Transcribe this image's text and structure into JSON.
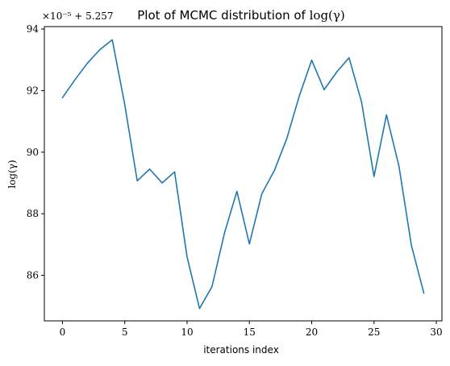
{
  "chart_data": {
    "type": "line",
    "title_prefix": "Plot of MCMC distribution of ",
    "title_math": "log(γ)",
    "xlabel": "iterations index",
    "ylabel": "log(γ)",
    "offset_text": "×10⁻⁵ + 5.257",
    "x_ticks": [
      0,
      5,
      10,
      15,
      20,
      25,
      30
    ],
    "x_tick_labels": [
      "0",
      "5",
      "10",
      "15",
      "20",
      "25",
      "30"
    ],
    "y_ticks": [
      86,
      88,
      90,
      92,
      94
    ],
    "y_tick_labels": [
      "86",
      "88",
      "90",
      "92",
      "94"
    ],
    "xlim": [
      -1.45,
      30.45
    ],
    "ylim": [
      84.52,
      94.08
    ],
    "grid": false,
    "line_color": "#1f77b4",
    "series": [
      {
        "x": [
          0,
          1,
          2,
          3,
          4,
          5,
          6,
          7,
          8,
          9,
          10,
          11,
          12,
          13,
          14,
          15,
          16,
          17,
          18,
          19,
          20,
          21,
          22,
          23,
          24,
          25,
          26,
          27,
          28,
          29
        ],
        "values": [
          91.77,
          92.35,
          92.89,
          93.33,
          93.65,
          91.55,
          89.07,
          89.45,
          89.0,
          89.36,
          86.6,
          84.92,
          85.63,
          87.37,
          88.73,
          87.02,
          88.65,
          89.4,
          90.44,
          91.82,
          92.99,
          92.03,
          92.6,
          93.07,
          91.63,
          89.21,
          91.21,
          89.55,
          86.97,
          85.42
        ]
      }
    ]
  }
}
